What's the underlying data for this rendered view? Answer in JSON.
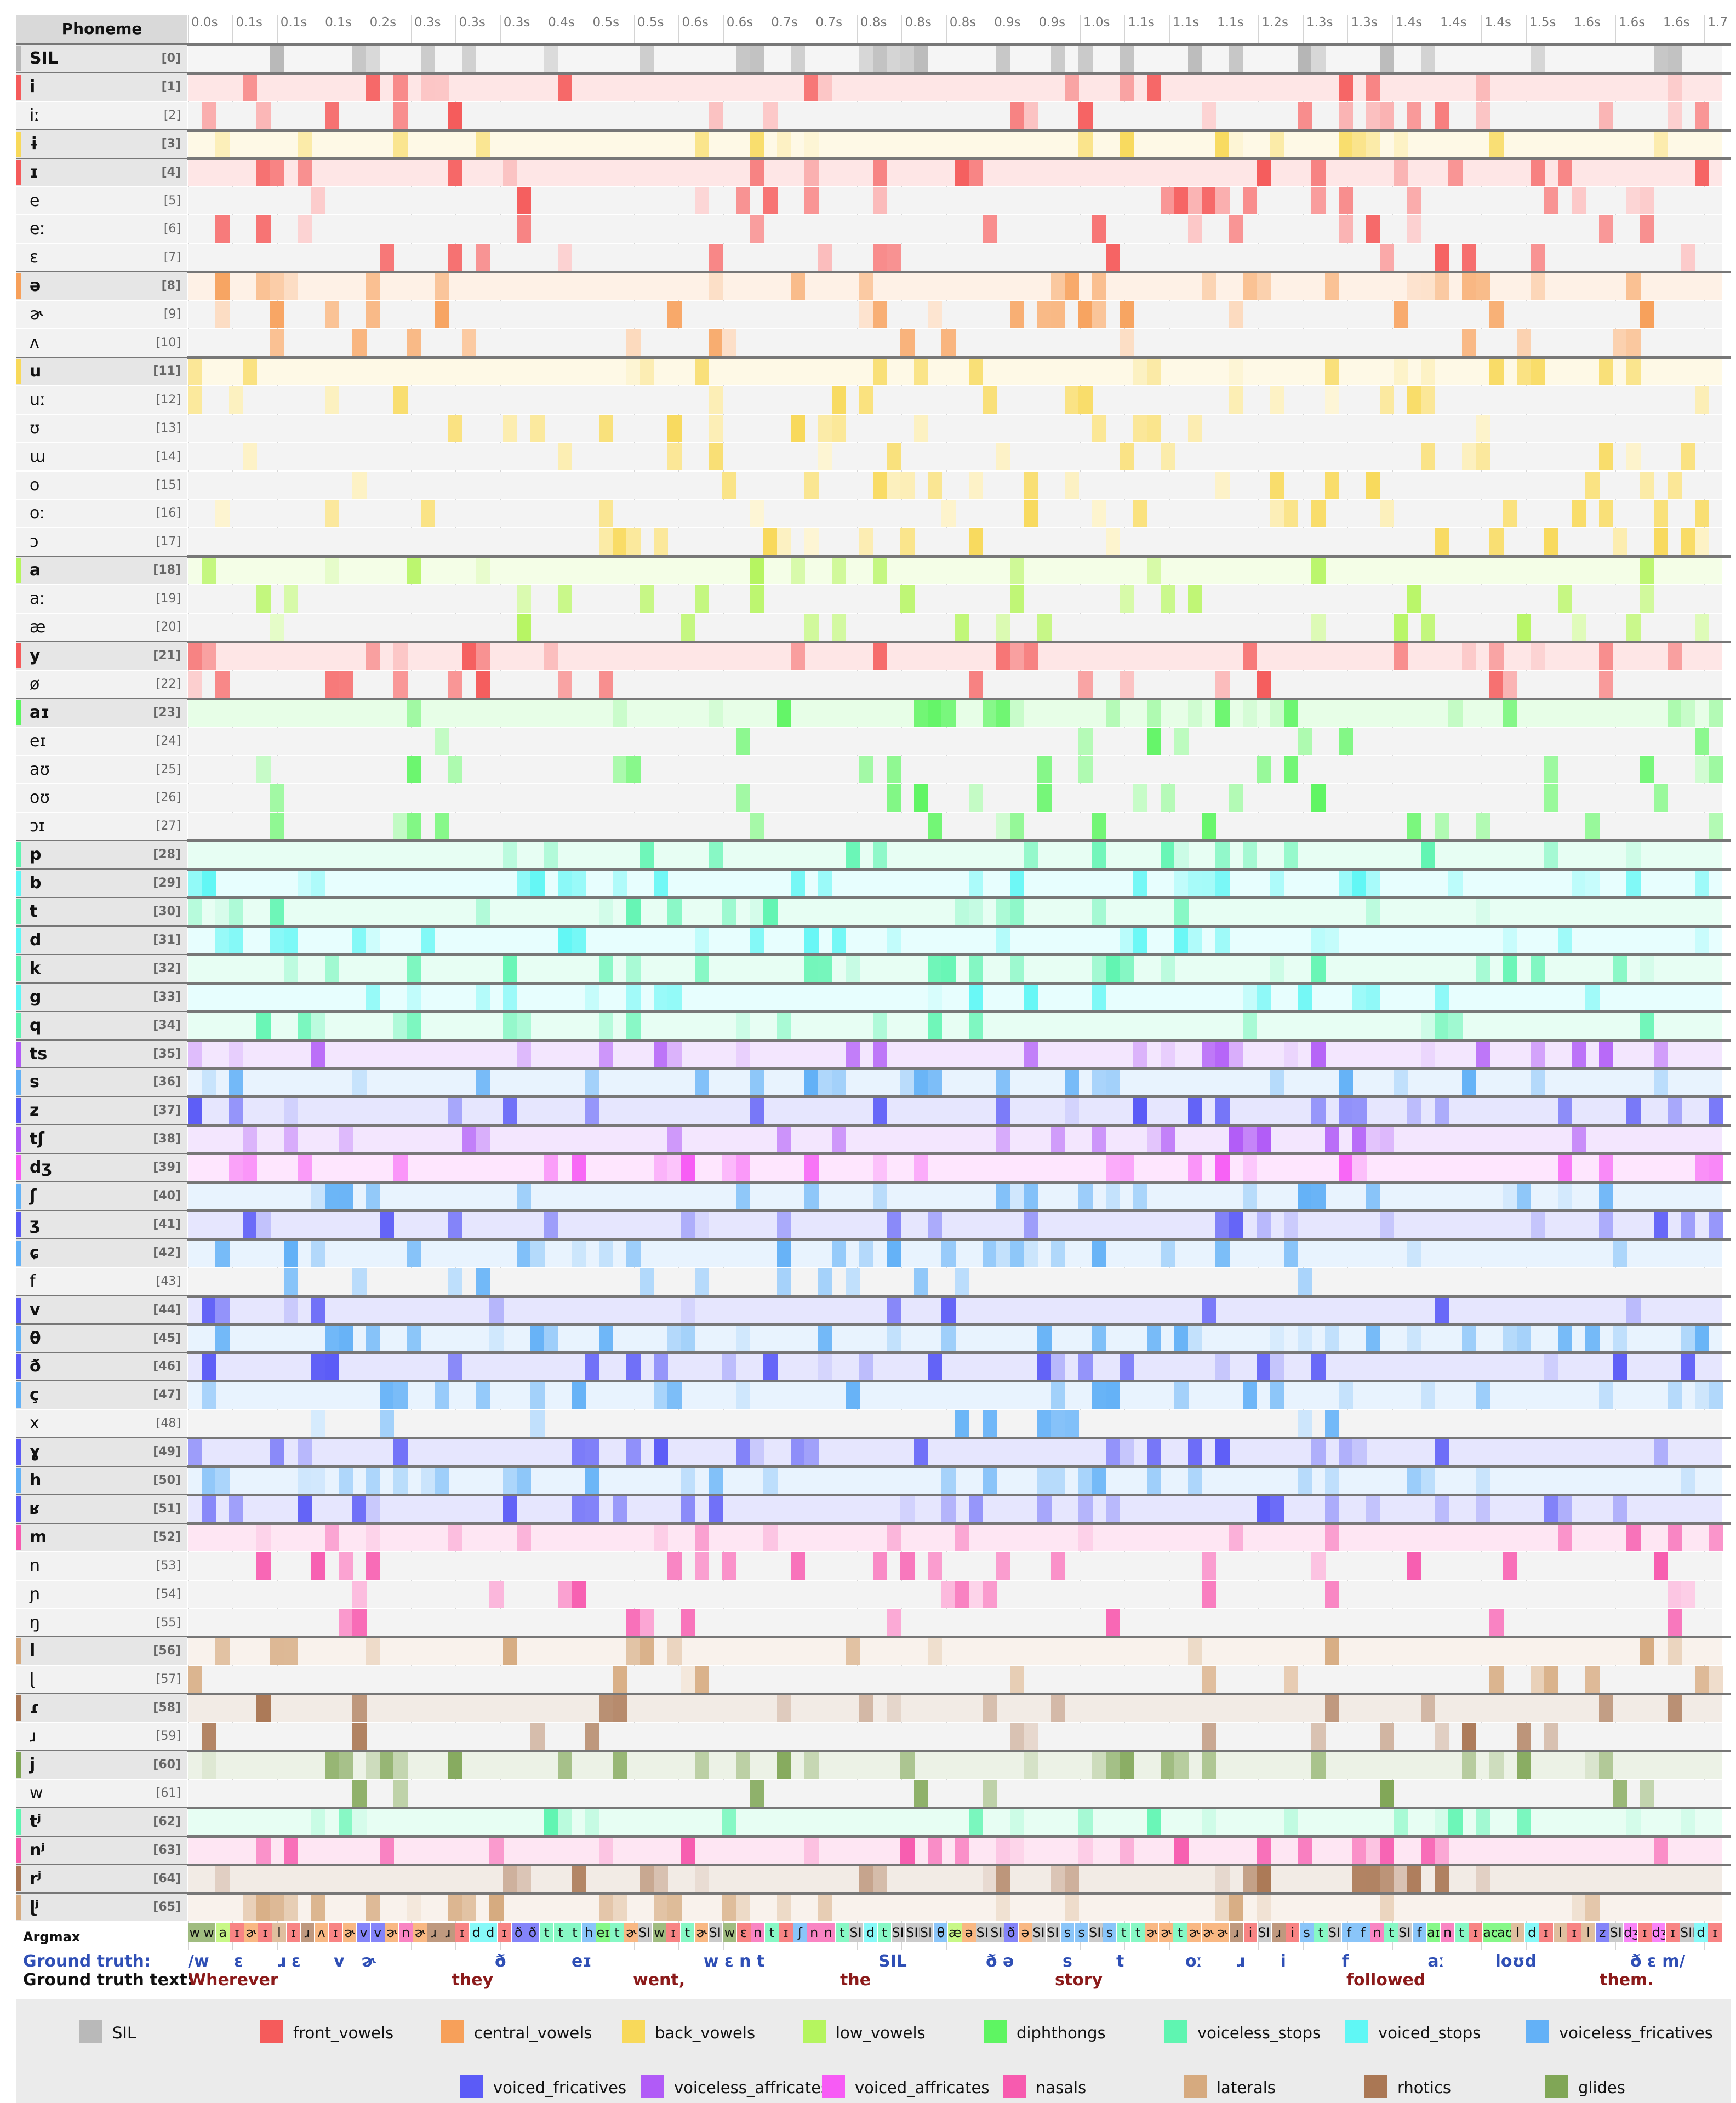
{
  "header": {
    "phoneme_label": "Phoneme"
  },
  "time_ticks": [
    "0.0s",
    "0.1s",
    "0.1s",
    "0.1s",
    "0.2s",
    "0.3s",
    "0.3s",
    "0.3s",
    "0.4s",
    "0.5s",
    "0.5s",
    "0.6s",
    "0.6s",
    "0.7s",
    "0.7s",
    "0.8s",
    "0.8s",
    "0.8s",
    "0.9s",
    "0.9s",
    "1.0s",
    "1.1s",
    "1.1s",
    "1.1s",
    "1.2s",
    "1.3s",
    "1.3s",
    "1.4s",
    "1.4s",
    "1.4s",
    "1.5s",
    "1.6s",
    "1.6s",
    "1.6s",
    "1.7"
  ],
  "categories": [
    {
      "name": "SIL",
      "color": "#b9b9b9"
    },
    {
      "name": "front_vowels",
      "color": "#f55b5b"
    },
    {
      "name": "central_vowels",
      "color": "#f7a05a"
    },
    {
      "name": "back_vowels",
      "color": "#f8d95a"
    },
    {
      "name": "low_vowels",
      "color": "#b5f55f"
    },
    {
      "name": "diphthongs",
      "color": "#5ef562"
    },
    {
      "name": "voiceless_stops",
      "color": "#5ff5b1"
    },
    {
      "name": "voiced_stops",
      "color": "#5ff7f5"
    },
    {
      "name": "voiceless_fricatives",
      "color": "#63b1f7"
    },
    {
      "name": "voiced_fricatives",
      "color": "#5b5bf7"
    },
    {
      "name": "voiceless_affricates",
      "color": "#b15bf7"
    },
    {
      "name": "voiced_affricates",
      "color": "#f75bf5"
    },
    {
      "name": "nasals",
      "color": "#f75baf"
    },
    {
      "name": "laterals",
      "color": "#d6aa7f"
    },
    {
      "name": "rhotics",
      "color": "#aa7754"
    },
    {
      "name": "glides",
      "color": "#80a656"
    }
  ],
  "phonemes": [
    {
      "sym": "SIL",
      "idx": "[0]",
      "cat": 0,
      "bold": true
    },
    {
      "sym": "i",
      "idx": "[1]",
      "cat": 1,
      "bold": true
    },
    {
      "sym": "iː",
      "idx": "[2]",
      "cat": 1,
      "bold": false
    },
    {
      "sym": "ɨ",
      "idx": "[3]",
      "cat": 3,
      "bold": true
    },
    {
      "sym": "ɪ",
      "idx": "[4]",
      "cat": 1,
      "bold": true
    },
    {
      "sym": "e",
      "idx": "[5]",
      "cat": 1,
      "bold": false
    },
    {
      "sym": "eː",
      "idx": "[6]",
      "cat": 1,
      "bold": false
    },
    {
      "sym": "ɛ",
      "idx": "[7]",
      "cat": 1,
      "bold": false
    },
    {
      "sym": "ə",
      "idx": "[8]",
      "cat": 2,
      "bold": true
    },
    {
      "sym": "ɚ",
      "idx": "[9]",
      "cat": 2,
      "bold": false
    },
    {
      "sym": "ʌ",
      "idx": "[10]",
      "cat": 2,
      "bold": false
    },
    {
      "sym": "u",
      "idx": "[11]",
      "cat": 3,
      "bold": true
    },
    {
      "sym": "uː",
      "idx": "[12]",
      "cat": 3,
      "bold": false
    },
    {
      "sym": "ʊ",
      "idx": "[13]",
      "cat": 3,
      "bold": false
    },
    {
      "sym": "ɯ",
      "idx": "[14]",
      "cat": 3,
      "bold": false
    },
    {
      "sym": "o",
      "idx": "[15]",
      "cat": 3,
      "bold": false
    },
    {
      "sym": "oː",
      "idx": "[16]",
      "cat": 3,
      "bold": false
    },
    {
      "sym": "ɔ",
      "idx": "[17]",
      "cat": 3,
      "bold": false
    },
    {
      "sym": "a",
      "idx": "[18]",
      "cat": 4,
      "bold": true
    },
    {
      "sym": "aː",
      "idx": "[19]",
      "cat": 4,
      "bold": false
    },
    {
      "sym": "æ",
      "idx": "[20]",
      "cat": 4,
      "bold": false
    },
    {
      "sym": "y",
      "idx": "[21]",
      "cat": 1,
      "bold": true
    },
    {
      "sym": "ø",
      "idx": "[22]",
      "cat": 1,
      "bold": false
    },
    {
      "sym": "aɪ",
      "idx": "[23]",
      "cat": 5,
      "bold": true
    },
    {
      "sym": "eɪ",
      "idx": "[24]",
      "cat": 5,
      "bold": false
    },
    {
      "sym": "aʊ",
      "idx": "[25]",
      "cat": 5,
      "bold": false
    },
    {
      "sym": "oʊ",
      "idx": "[26]",
      "cat": 5,
      "bold": false
    },
    {
      "sym": "ɔɪ",
      "idx": "[27]",
      "cat": 5,
      "bold": false
    },
    {
      "sym": "p",
      "idx": "[28]",
      "cat": 6,
      "bold": true
    },
    {
      "sym": "b",
      "idx": "[29]",
      "cat": 7,
      "bold": true
    },
    {
      "sym": "t",
      "idx": "[30]",
      "cat": 6,
      "bold": true
    },
    {
      "sym": "d",
      "idx": "[31]",
      "cat": 7,
      "bold": true
    },
    {
      "sym": "k",
      "idx": "[32]",
      "cat": 6,
      "bold": true
    },
    {
      "sym": "g",
      "idx": "[33]",
      "cat": 7,
      "bold": true
    },
    {
      "sym": "q",
      "idx": "[34]",
      "cat": 6,
      "bold": true
    },
    {
      "sym": "ts",
      "idx": "[35]",
      "cat": 10,
      "bold": true
    },
    {
      "sym": "s",
      "idx": "[36]",
      "cat": 8,
      "bold": true
    },
    {
      "sym": "z",
      "idx": "[37]",
      "cat": 9,
      "bold": true
    },
    {
      "sym": "tʃ",
      "idx": "[38]",
      "cat": 10,
      "bold": true
    },
    {
      "sym": "dʒ",
      "idx": "[39]",
      "cat": 11,
      "bold": true
    },
    {
      "sym": "ʃ",
      "idx": "[40]",
      "cat": 8,
      "bold": true
    },
    {
      "sym": "ʒ",
      "idx": "[41]",
      "cat": 9,
      "bold": true
    },
    {
      "sym": "ɕ",
      "idx": "[42]",
      "cat": 8,
      "bold": true
    },
    {
      "sym": "f",
      "idx": "[43]",
      "cat": 8,
      "bold": false
    },
    {
      "sym": "v",
      "idx": "[44]",
      "cat": 9,
      "bold": true
    },
    {
      "sym": "θ",
      "idx": "[45]",
      "cat": 8,
      "bold": true
    },
    {
      "sym": "ð",
      "idx": "[46]",
      "cat": 9,
      "bold": true
    },
    {
      "sym": "ç",
      "idx": "[47]",
      "cat": 8,
      "bold": true
    },
    {
      "sym": "x",
      "idx": "[48]",
      "cat": 8,
      "bold": false
    },
    {
      "sym": "ɣ",
      "idx": "[49]",
      "cat": 9,
      "bold": true
    },
    {
      "sym": "h",
      "idx": "[50]",
      "cat": 8,
      "bold": true
    },
    {
      "sym": "ʁ",
      "idx": "[51]",
      "cat": 9,
      "bold": true
    },
    {
      "sym": "m",
      "idx": "[52]",
      "cat": 12,
      "bold": true
    },
    {
      "sym": "n",
      "idx": "[53]",
      "cat": 12,
      "bold": false
    },
    {
      "sym": "ɲ",
      "idx": "[54]",
      "cat": 12,
      "bold": false
    },
    {
      "sym": "ŋ",
      "idx": "[55]",
      "cat": 12,
      "bold": false
    },
    {
      "sym": "l",
      "idx": "[56]",
      "cat": 13,
      "bold": true
    },
    {
      "sym": "ɭ",
      "idx": "[57]",
      "cat": 13,
      "bold": false
    },
    {
      "sym": "ɾ",
      "idx": "[58]",
      "cat": 14,
      "bold": true
    },
    {
      "sym": "ɹ",
      "idx": "[59]",
      "cat": 14,
      "bold": false
    },
    {
      "sym": "j",
      "idx": "[60]",
      "cat": 15,
      "bold": true
    },
    {
      "sym": "w",
      "idx": "[61]",
      "cat": 15,
      "bold": false
    },
    {
      "sym": "tʲ",
      "idx": "[62]",
      "cat": 6,
      "bold": true
    },
    {
      "sym": "nʲ",
      "idx": "[63]",
      "cat": 12,
      "bold": true
    },
    {
      "sym": "rʲ",
      "idx": "[64]",
      "cat": 14,
      "bold": true
    },
    {
      "sym": "ɭʲ",
      "idx": "[65]",
      "cat": 13,
      "bold": true
    }
  ],
  "argmax": {
    "label": "Argmax",
    "tokens": [
      "w",
      "w",
      "a",
      "ɪ",
      "ɚ",
      "ɪ",
      "l",
      "ɪ",
      "ɹ",
      "ʌ",
      "ɪ",
      "ɚ",
      "v",
      "v",
      "ɚ",
      "n",
      "ɚ",
      "ɹ",
      "ɹ",
      "ɪ",
      "d",
      "d",
      "ɪ",
      "ð",
      "ð",
      "t",
      "t",
      "t",
      "h",
      "eɪ",
      "t",
      "ɚ",
      "SIL",
      "w",
      "ɪ",
      "t",
      "ɚ",
      "SIL",
      "w",
      "ɛ",
      "n",
      "t",
      "ɪ",
      "ʃ",
      "n",
      "n",
      "t",
      "SIL",
      "d",
      "t",
      "SIL",
      "SIL",
      "SIL",
      "θ",
      "æ",
      "ə",
      "SIL",
      "SIL",
      "ð",
      "ə",
      "SIL",
      "SIL",
      "s",
      "s",
      "SIL",
      "s",
      "t",
      "t",
      "ɚ",
      "ɚ",
      "t",
      "ɚ",
      "ɚ",
      "ɚ",
      "ɹ",
      "i",
      "SIL",
      "ɹ",
      "i",
      "s",
      "t",
      "SIL",
      "f",
      "f",
      "n",
      "t",
      "SIL",
      "f",
      "aɪ",
      "n",
      "t",
      "ɪ",
      "aʊ",
      "aʊ",
      "l",
      "d",
      "ɪ",
      "l",
      "ɪ",
      "l",
      "z",
      "SIL",
      "dʒ",
      "ɪ",
      "dʒ",
      "ɪ",
      "SIL",
      "d",
      "ɪ"
    ]
  },
  "ground_truth": {
    "label": "Ground truth:",
    "text_label": "Ground truth text:",
    "phones": [
      {
        "t": "/w",
        "x": 0.0
      },
      {
        "t": "ɛ",
        "x": 0.03
      },
      {
        "t": "ɹ ɛ",
        "x": 0.058
      },
      {
        "t": "v",
        "x": 0.095
      },
      {
        "t": "ɚ",
        "x": 0.113
      },
      {
        "t": "ð",
        "x": 0.2
      },
      {
        "t": "eɪ",
        "x": 0.25
      },
      {
        "t": "w ɛ n t",
        "x": 0.336
      },
      {
        "t": "SIL",
        "x": 0.45
      },
      {
        "t": "ð ə",
        "x": 0.52
      },
      {
        "t": "s",
        "x": 0.57
      },
      {
        "t": "t",
        "x": 0.605
      },
      {
        "t": "oː",
        "x": 0.65
      },
      {
        "t": "ɹ",
        "x": 0.683
      },
      {
        "t": "i",
        "x": 0.712
      },
      {
        "t": "f",
        "x": 0.752
      },
      {
        "t": "aː",
        "x": 0.808
      },
      {
        "t": "loʊd",
        "x": 0.852
      },
      {
        "t": "ð ɛ m/",
        "x": 0.94
      }
    ],
    "words": [
      {
        "t": "Wherever",
        "x": 0.0
      },
      {
        "t": "they",
        "x": 0.172
      },
      {
        "t": "went,",
        "x": 0.29
      },
      {
        "t": "the",
        "x": 0.425
      },
      {
        "t": "story",
        "x": 0.565
      },
      {
        "t": "followed",
        "x": 0.755
      },
      {
        "t": "them.",
        "x": 0.92
      }
    ]
  }
}
